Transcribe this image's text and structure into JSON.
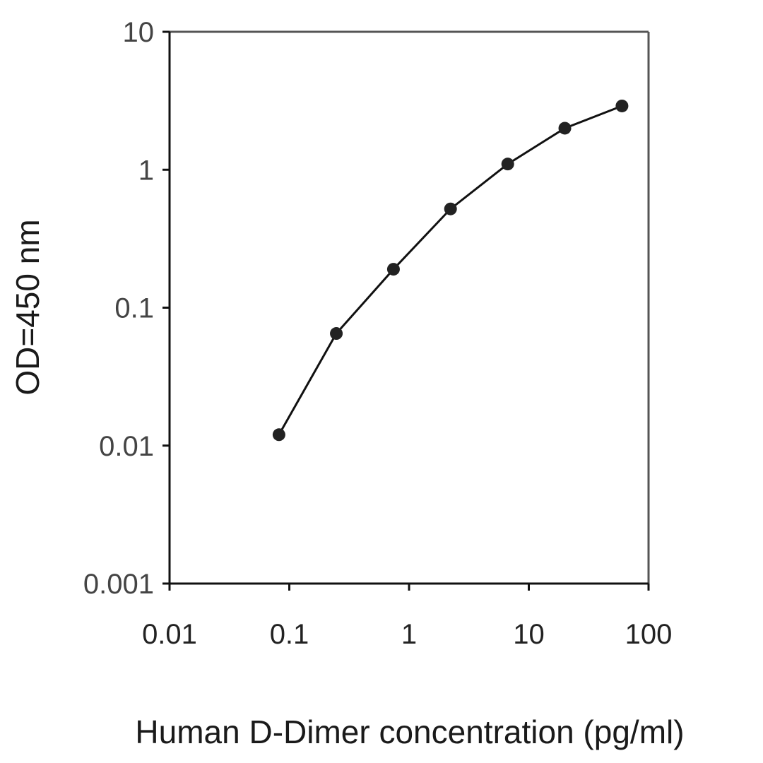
{
  "chart_data": {
    "type": "line",
    "title": "",
    "xlabel": "Human D-Dimer concentration (pg/ml)",
    "ylabel": "OD=450 nm",
    "x_scale": "log",
    "y_scale": "log",
    "xlim": [
      0.01,
      100
    ],
    "ylim": [
      0.001,
      10
    ],
    "x_ticks": [
      "0.01",
      "0.1",
      "1",
      "10",
      "100"
    ],
    "y_ticks": [
      "0.001",
      "0.01",
      "0.1",
      "1",
      "10"
    ],
    "grid": false,
    "legend": "none",
    "series": [
      {
        "x": [
          0.082,
          0.247,
          0.741,
          2.22,
          6.67,
          20,
          60
        ],
        "y": [
          0.012,
          0.065,
          0.19,
          0.52,
          1.1,
          2.0,
          2.9
        ]
      }
    ],
    "colors": {
      "line": "#111111",
      "marker": "#222222",
      "axis": "#111111",
      "frame": "#555555"
    }
  }
}
